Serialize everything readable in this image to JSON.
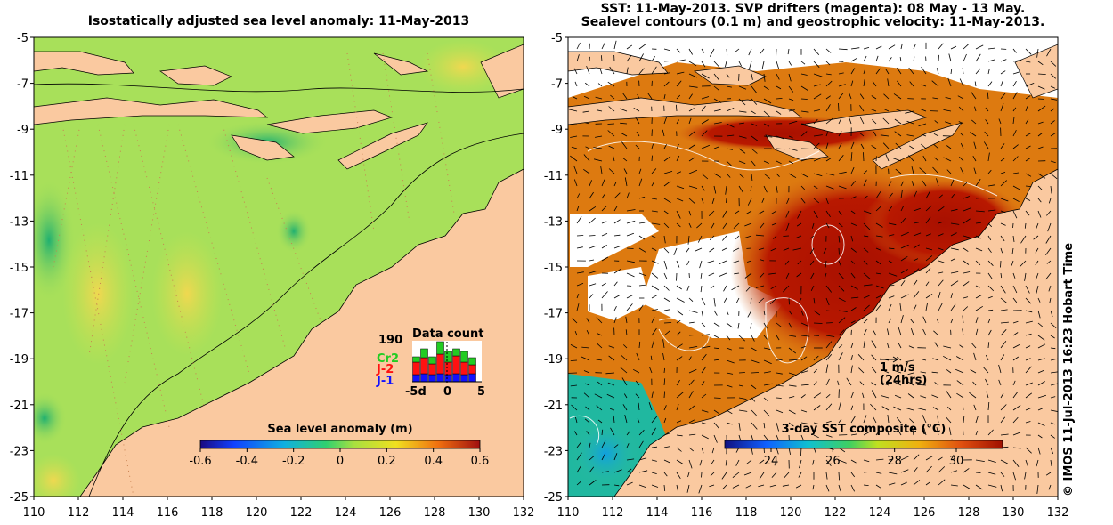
{
  "left_panel": {
    "title": "Isostatically adjusted sea level anomaly: 11-May-2013",
    "colorbar": {
      "label": "Sea level anomaly (m)",
      "ticks": [
        "-0.6",
        "-0.4",
        "-0.2",
        "0",
        "0.2",
        "0.4",
        "0.6"
      ],
      "range": [
        -0.6,
        0.6
      ]
    },
    "data_count": {
      "title": "Data count",
      "max_label": "190",
      "x_labels": [
        "-5d",
        "0",
        "5"
      ],
      "satellites": [
        {
          "name": "Cr2",
          "color": "#22cc22"
        },
        {
          "name": "J-2",
          "color": "#ff1111"
        },
        {
          "name": "J-1",
          "color": "#1111ff"
        }
      ]
    }
  },
  "right_panel": {
    "title_line1": "SST: 11-May-2013. SVP drifters (magenta): 08 May - 13 May.",
    "title_line2": "Sealevel contours (0.1 m) and geostrophic velocity: 11-May-2013.",
    "colorbar": {
      "label": "3-day SST composite (°C)",
      "ticks": [
        "24",
        "26",
        "28",
        "30"
      ],
      "range": [
        22.5,
        31.5
      ]
    },
    "velocity_key": {
      "label": "1 m/s",
      "sublabel": "(24hrs)"
    }
  },
  "axes": {
    "lon_ticks": [
      "110",
      "112",
      "114",
      "116",
      "118",
      "120",
      "122",
      "124",
      "126",
      "128",
      "130",
      "132"
    ],
    "lat_ticks": [
      "-5",
      "-7",
      "-9",
      "-11",
      "-13",
      "-15",
      "-17",
      "-19",
      "-21",
      "-23",
      "-25"
    ],
    "lon_range": [
      110,
      132
    ],
    "lat_range": [
      -25,
      -5
    ]
  },
  "colors": {
    "land": "#fac9a0",
    "sla_base": "#a8e05a",
    "sst_base": "#dd7a10",
    "sst_hot": "#a81000"
  },
  "credit": "© IMOS 11-Jul-2013 16:23 Hobart Time"
}
